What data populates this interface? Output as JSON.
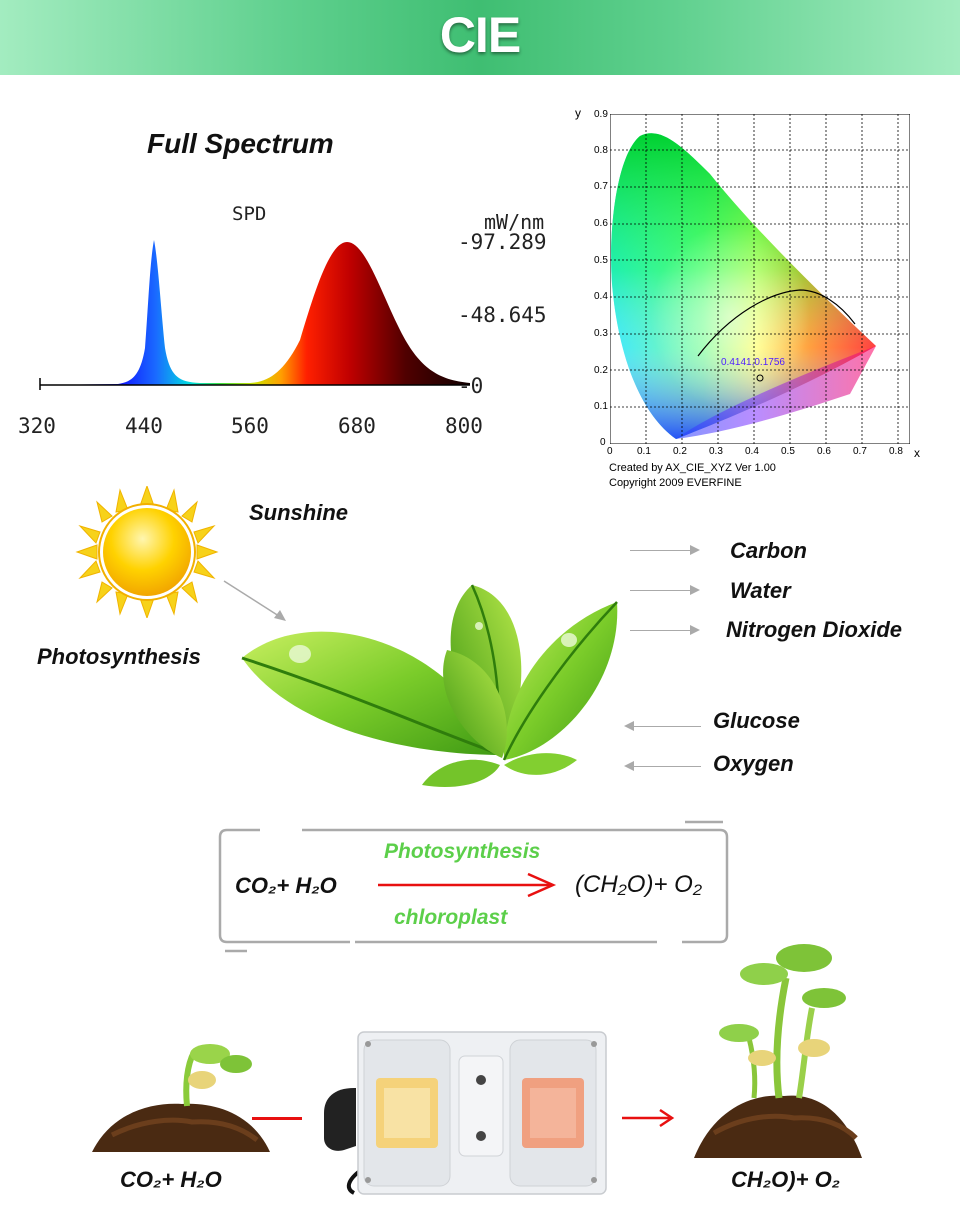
{
  "banner": {
    "title": "CIE"
  },
  "spectrum": {
    "heading": "Full Spectrum",
    "spd_label": "SPD",
    "unit": "mW/nm",
    "y_ticks": [
      "-97.289",
      "-48.645",
      "-0"
    ],
    "x_ticks": [
      "320",
      "440",
      "560",
      "680",
      "800"
    ]
  },
  "cie": {
    "y_axis_label": "y",
    "x_axis_label": "x",
    "y_ticks": [
      "0",
      "0.1",
      "0.2",
      "0.3",
      "0.4",
      "0.5",
      "0.6",
      "0.7",
      "0.8",
      "0.9"
    ],
    "x_ticks": [
      "0",
      "0.1",
      "0.2",
      "0.3",
      "0.4",
      "0.5",
      "0.6",
      "0.7",
      "0.8"
    ],
    "point_label": "0.4141,0.1756",
    "credit_line1": "Created by AX_CIE_XYZ Ver 1.00",
    "credit_line2": "Copyright 2009 EVERFINE"
  },
  "photo": {
    "sunshine": "Sunshine",
    "photosynthesis": "Photosynthesis",
    "inputs": [
      "Carbon",
      "Water",
      "Nitrogen Dioxide"
    ],
    "outputs": [
      "Glucose",
      "Oxygen"
    ]
  },
  "equation": {
    "left": "CO₂+ H₂O",
    "above": "Photosynthesis",
    "below": "chloroplast",
    "right": "(CH₂O)+ O₂"
  },
  "bottom": {
    "left_label": "CO₂+ H₂O",
    "right_label": "CH₂O)+ O₂"
  }
}
